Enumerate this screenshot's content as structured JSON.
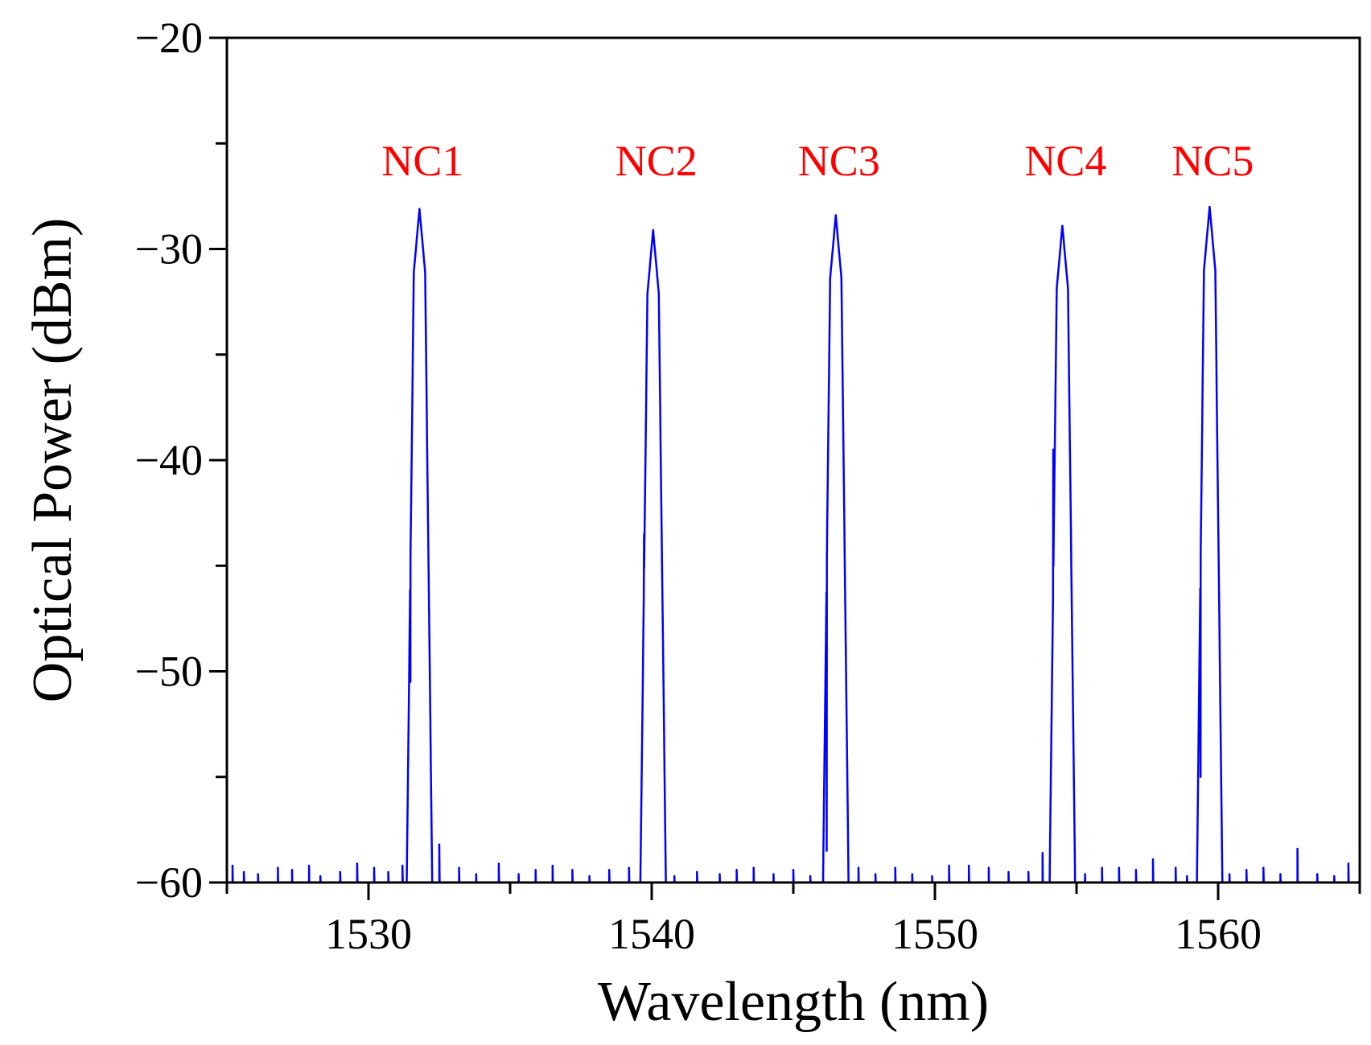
{
  "chart_data": {
    "type": "line",
    "title": "",
    "xlabel": "Wavelength (nm)",
    "ylabel": "Optical Power (dBm)",
    "xlim": [
      1525,
      1565
    ],
    "ylim": [
      -60,
      -20
    ],
    "xticks": [
      1530,
      1540,
      1550,
      1560
    ],
    "xtick_labels": [
      "1530",
      "1540",
      "1550",
      "1560"
    ],
    "xminor_step": 5,
    "yticks": [
      -20,
      -30,
      -40,
      -50,
      -60
    ],
    "ytick_labels": [
      "−20",
      "−30",
      "−40",
      "−50",
      "−60"
    ],
    "yminor_step": 5,
    "grid": false,
    "line_color": "#0000ff",
    "label_color": "#ff0000",
    "noise_floor": -60,
    "peaks": [
      {
        "label": "NC1",
        "wavelength": 1531.8,
        "power": -28.1,
        "shoulder_power": -50.5
      },
      {
        "label": "NC2",
        "wavelength": 1540.05,
        "power": -29.1,
        "shoulder_power": -43.5
      },
      {
        "label": "NC3",
        "wavelength": 1546.5,
        "power": -28.4,
        "shoulder_power": -58.5
      },
      {
        "label": "NC4",
        "wavelength": 1554.5,
        "power": -28.9,
        "shoulder_power": -39.5
      },
      {
        "label": "NC5",
        "wavelength": 1559.7,
        "power": -28.0,
        "shoulder_power": -55.0
      }
    ],
    "noise_spikes": [
      [
        1525.2,
        -59.2
      ],
      [
        1525.6,
        -59.5
      ],
      [
        1526.1,
        -59.6
      ],
      [
        1526.8,
        -59.3
      ],
      [
        1527.3,
        -59.4
      ],
      [
        1527.9,
        -59.2
      ],
      [
        1528.3,
        -59.7
      ],
      [
        1529.0,
        -59.5
      ],
      [
        1529.6,
        -59.1
      ],
      [
        1530.2,
        -59.3
      ],
      [
        1530.7,
        -59.5
      ],
      [
        1531.2,
        -59.2
      ],
      [
        1532.5,
        -58.2
      ],
      [
        1533.2,
        -59.3
      ],
      [
        1533.8,
        -59.6
      ],
      [
        1534.6,
        -59.1
      ],
      [
        1535.3,
        -59.6
      ],
      [
        1535.9,
        -59.4
      ],
      [
        1536.5,
        -59.2
      ],
      [
        1537.2,
        -59.4
      ],
      [
        1537.8,
        -59.7
      ],
      [
        1538.5,
        -59.4
      ],
      [
        1539.2,
        -59.3
      ],
      [
        1540.8,
        -59.7
      ],
      [
        1541.6,
        -59.5
      ],
      [
        1542.4,
        -59.6
      ],
      [
        1543.0,
        -59.4
      ],
      [
        1543.6,
        -59.3
      ],
      [
        1544.3,
        -59.6
      ],
      [
        1545.0,
        -59.4
      ],
      [
        1545.6,
        -59.7
      ],
      [
        1547.3,
        -59.3
      ],
      [
        1547.9,
        -59.6
      ],
      [
        1548.6,
        -59.3
      ],
      [
        1549.2,
        -59.6
      ],
      [
        1549.9,
        -59.7
      ],
      [
        1550.5,
        -59.2
      ],
      [
        1551.2,
        -59.2
      ],
      [
        1551.9,
        -59.3
      ],
      [
        1552.6,
        -59.5
      ],
      [
        1553.3,
        -59.5
      ],
      [
        1553.8,
        -58.6
      ],
      [
        1555.3,
        -59.6
      ],
      [
        1555.9,
        -59.3
      ],
      [
        1556.5,
        -59.3
      ],
      [
        1557.1,
        -59.4
      ],
      [
        1557.7,
        -58.9
      ],
      [
        1558.5,
        -59.3
      ],
      [
        1558.9,
        -59.7
      ],
      [
        1560.4,
        -59.6
      ],
      [
        1561.0,
        -59.4
      ],
      [
        1561.6,
        -59.3
      ],
      [
        1562.2,
        -59.6
      ],
      [
        1562.8,
        -58.4
      ],
      [
        1563.5,
        -59.6
      ],
      [
        1564.1,
        -59.7
      ],
      [
        1564.6,
        -59.1
      ]
    ]
  }
}
